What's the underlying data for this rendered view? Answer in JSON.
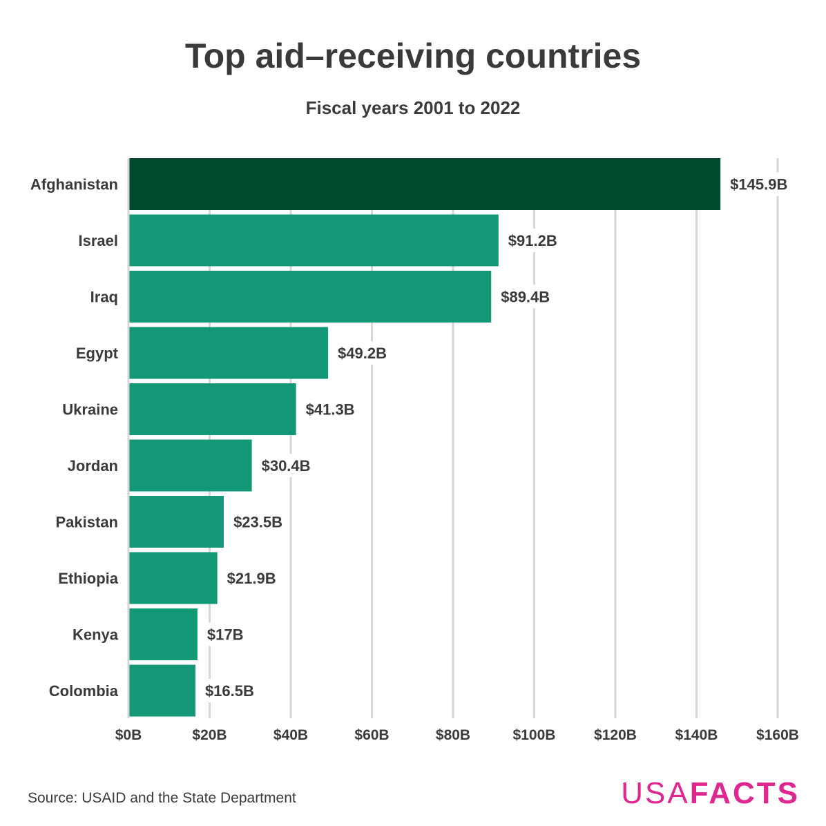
{
  "title": "Top aid–receiving countries",
  "subtitle": "Fiscal years 2001 to 2022",
  "source": "Source: USAID and the State Department",
  "logo": {
    "light": "USA",
    "bold": "FACTS"
  },
  "colors": {
    "highlight": "#004b2d",
    "bar": "#139877",
    "grid": "#d6d6d6",
    "text": "#3a3a3a",
    "brand": "#e0268f"
  },
  "chart_data": {
    "type": "bar",
    "orientation": "horizontal",
    "title": "Top aid–receiving countries",
    "subtitle": "Fiscal years 2001 to 2022",
    "xlabel": "",
    "ylabel": "",
    "xlim": [
      0,
      160
    ],
    "grid": true,
    "categories": [
      "Afghanistan",
      "Israel",
      "Iraq",
      "Egypt",
      "Ukraine",
      "Jordan",
      "Pakistan",
      "Ethiopia",
      "Kenya",
      "Colombia"
    ],
    "values": [
      145.9,
      91.2,
      89.4,
      49.2,
      41.3,
      30.4,
      23.5,
      21.9,
      17,
      16.5
    ],
    "value_labels": [
      "$145.9B",
      "$91.2B",
      "$89.4B",
      "$49.2B",
      "$41.3B",
      "$30.4B",
      "$23.5B",
      "$21.9B",
      "$17B",
      "$16.5B"
    ],
    "ticks": [
      0,
      20,
      40,
      60,
      80,
      100,
      120,
      140,
      160
    ],
    "tick_labels": [
      "$0B",
      "$20B",
      "$40B",
      "$60B",
      "$80B",
      "$100B",
      "$120B",
      "$140B",
      "$160B"
    ],
    "highlight_index": 0
  }
}
